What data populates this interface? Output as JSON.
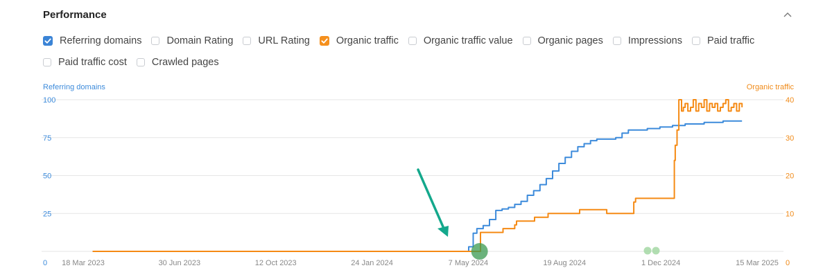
{
  "header": {
    "title": "Performance"
  },
  "metrics": [
    [
      {
        "label": "Referring domains",
        "checked": true,
        "color": "#3b84d6"
      },
      {
        "label": "Domain Rating",
        "checked": false
      },
      {
        "label": "URL Rating",
        "checked": false
      },
      {
        "label": "Organic traffic",
        "checked": true,
        "color": "#f5901e"
      },
      {
        "label": "Organic traffic value",
        "checked": false
      },
      {
        "label": "Organic pages",
        "checked": false
      },
      {
        "label": "Impressions",
        "checked": false
      },
      {
        "label": "Paid traffic",
        "checked": false
      }
    ],
    [
      {
        "label": "Paid traffic cost",
        "checked": false
      },
      {
        "label": "Crawled pages",
        "checked": false
      }
    ]
  ],
  "colors": {
    "refdomains": "#3d8bdb",
    "organic": "#f58a14",
    "arrow": "#14a88c",
    "marker": "#3a9a50",
    "grid": "#e6e6e6"
  },
  "chart_data": {
    "type": "line",
    "x_tick_labels": [
      "18 Mar 2023",
      "30 Jun 2023",
      "12 Oct 2023",
      "24 Jan 2024",
      "7 May 2024",
      "19 Aug 2024",
      "1 Dec 2024",
      "15 Mar 2025"
    ],
    "y_left": {
      "label": "Referring domains",
      "ticks": [
        "100",
        "75",
        "50",
        "25",
        "0"
      ],
      "ylim": [
        0,
        100
      ]
    },
    "y_right": {
      "label": "Organic traffic",
      "ticks": [
        "40",
        "30",
        "20",
        "10",
        "0"
      ],
      "ylim": [
        0,
        40
      ]
    },
    "x_range": [
      -12,
      736
    ],
    "series": [
      {
        "name": "Referring domains",
        "axis": "left",
        "color": "#3d8bdb",
        "x": [
          0,
          415,
          417,
          422,
          426,
          433,
          440,
          447,
          454,
          461,
          468,
          475,
          482,
          489,
          496,
          503,
          510,
          517,
          524,
          531,
          538,
          545,
          552,
          559,
          566,
          573,
          580,
          587,
          594,
          601,
          608,
          615,
          622,
          629,
          636,
          643,
          650,
          657,
          664,
          671,
          678,
          685,
          692,
          699,
          706,
          713,
          720
        ],
        "y": [
          0,
          0,
          3,
          12,
          15,
          17,
          21,
          27,
          28,
          29,
          31,
          33,
          37,
          40,
          44,
          48,
          53,
          58,
          62,
          66,
          69,
          71,
          73,
          74,
          74,
          74,
          75,
          78,
          80,
          80,
          80,
          81,
          81,
          82,
          82,
          83,
          83,
          84,
          84,
          84,
          85,
          85,
          85,
          86,
          86,
          86,
          86
        ]
      },
      {
        "name": "Organic traffic",
        "axis": "right",
        "color": "#f58a14",
        "x": [
          0,
          429,
          430,
          440,
          455,
          468,
          470,
          485,
          490,
          500,
          505,
          510,
          540,
          560,
          570,
          575,
          600,
          602,
          640,
          645,
          646,
          648,
          650,
          653,
          655,
          657,
          660,
          663,
          666,
          669,
          672,
          675,
          678,
          681,
          684,
          687,
          690,
          693,
          696,
          699,
          702,
          705,
          708,
          711,
          714,
          717,
          720
        ],
        "y": [
          0,
          0,
          5,
          5,
          6,
          7,
          8,
          8,
          9,
          9,
          10,
          10,
          11,
          11,
          10,
          10,
          13,
          14,
          14,
          24,
          28,
          32,
          40,
          37,
          38,
          39,
          37,
          38,
          40,
          37,
          39,
          38,
          40,
          37,
          39,
          38,
          39,
          37,
          38,
          39,
          40,
          37,
          38,
          39,
          37,
          39,
          38
        ]
      }
    ],
    "grid": true,
    "legend": "checkbox-row-top"
  }
}
